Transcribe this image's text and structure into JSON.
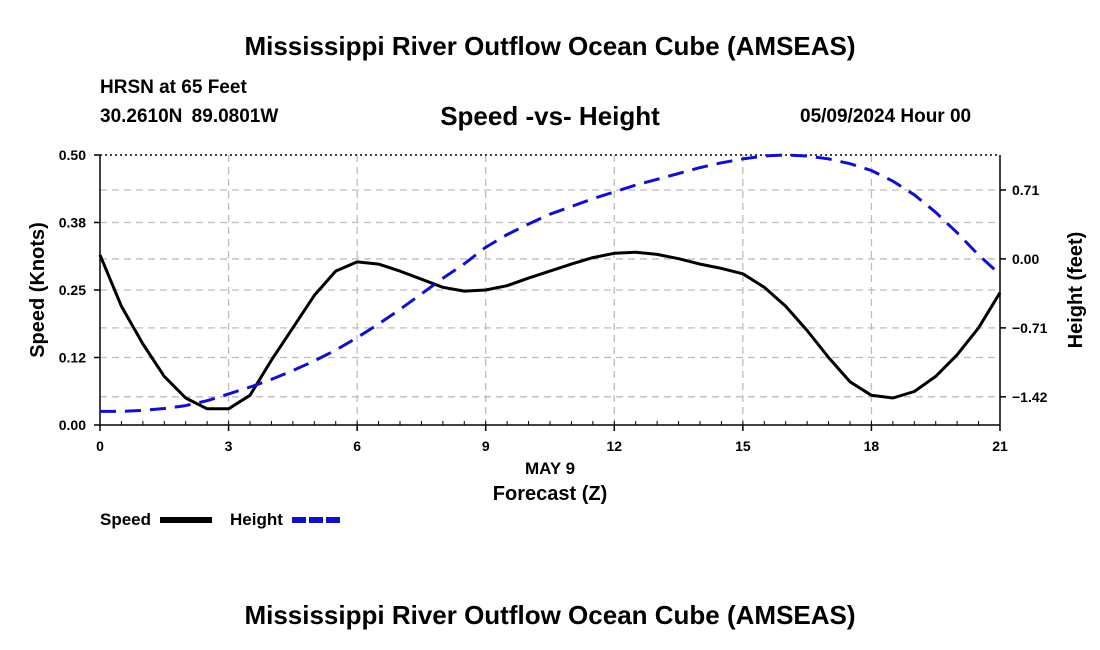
{
  "header": {
    "title": "Mississippi River Outflow Ocean Cube (AMSEAS)",
    "station": "HRSN at 65 Feet",
    "coords": "30.2610N  89.0801W",
    "subtitle": "Speed -vs- Height",
    "date": "05/09/2024 Hour 00"
  },
  "footer": {
    "title": "Mississippi River Outflow Ocean Cube (AMSEAS)"
  },
  "colors": {
    "speed": "#000000",
    "height": "#1010c8",
    "grid": "#bdbdbd"
  },
  "chart_data": {
    "type": "line",
    "title": "Speed -vs- Height",
    "xlabel": "Forecast (Z)",
    "x_date_label": "MAY 9",
    "ylabel": "Speed (Knots)",
    "y2label": "Height (feet)",
    "xlim": [
      0,
      21
    ],
    "ylim": [
      0,
      0.5
    ],
    "y2lim": [
      -1.71,
      1.07
    ],
    "x_ticks": [
      0,
      3,
      6,
      9,
      12,
      15,
      18,
      21
    ],
    "x_tick_labels": [
      "0",
      "3",
      "6",
      "9",
      "12",
      "15",
      "18",
      "21"
    ],
    "y_ticks": [
      0.0,
      0.125,
      0.25,
      0.375,
      0.5
    ],
    "y_tick_labels": [
      "0.00",
      "0.12",
      "0.25",
      "0.38",
      "0.50"
    ],
    "y2_ticks": [
      -1.42,
      -0.71,
      0.0,
      0.71
    ],
    "y2_tick_labels": [
      "−1.42",
      "−0.71",
      "0.00",
      "0.71"
    ],
    "grid": true,
    "legend": {
      "placement": "bottom-left",
      "speed_label": "Speed",
      "height_label": "Height"
    },
    "series": [
      {
        "name": "Speed",
        "axis": "left",
        "style": "solid",
        "x": [
          0,
          0.5,
          1,
          1.5,
          2,
          2.5,
          3,
          3.5,
          4,
          4.5,
          5,
          5.5,
          6,
          6.5,
          7,
          7.5,
          8,
          8.5,
          9,
          9.5,
          10,
          10.5,
          11,
          11.5,
          12,
          12.5,
          13,
          13.5,
          14,
          14.5,
          15,
          15.5,
          16,
          16.5,
          17,
          17.5,
          18,
          18.5,
          19,
          19.5,
          20,
          20.5,
          21
        ],
        "values": [
          0.315,
          0.22,
          0.15,
          0.09,
          0.05,
          0.03,
          0.03,
          0.055,
          0.12,
          0.18,
          0.24,
          0.285,
          0.302,
          0.298,
          0.285,
          0.27,
          0.255,
          0.248,
          0.25,
          0.258,
          0.272,
          0.285,
          0.298,
          0.31,
          0.318,
          0.32,
          0.316,
          0.308,
          0.298,
          0.29,
          0.28,
          0.255,
          0.22,
          0.175,
          0.125,
          0.08,
          0.055,
          0.05,
          0.062,
          0.09,
          0.13,
          0.18,
          0.245
        ]
      },
      {
        "name": "Height",
        "axis": "right",
        "style": "dashed",
        "x": [
          0,
          0.5,
          1,
          1.5,
          2,
          2.5,
          3,
          3.5,
          4,
          4.5,
          5,
          5.5,
          6,
          6.5,
          7,
          7.5,
          8,
          8.5,
          9,
          9.5,
          10,
          10.5,
          11,
          11.5,
          12,
          12.5,
          13,
          13.5,
          14,
          14.5,
          15,
          15.5,
          16,
          16.5,
          17,
          17.5,
          18,
          18.5,
          19,
          19.5,
          20,
          20.5,
          21
        ],
        "values": [
          -1.57,
          -1.57,
          -1.56,
          -1.54,
          -1.51,
          -1.46,
          -1.39,
          -1.32,
          -1.24,
          -1.15,
          -1.05,
          -0.94,
          -0.81,
          -0.67,
          -0.52,
          -0.36,
          -0.2,
          -0.05,
          0.12,
          0.25,
          0.36,
          0.46,
          0.54,
          0.62,
          0.69,
          0.76,
          0.82,
          0.88,
          0.94,
          0.99,
          1.03,
          1.06,
          1.07,
          1.06,
          1.03,
          0.98,
          0.91,
          0.8,
          0.66,
          0.48,
          0.27,
          0.04,
          -0.16
        ]
      }
    ]
  }
}
